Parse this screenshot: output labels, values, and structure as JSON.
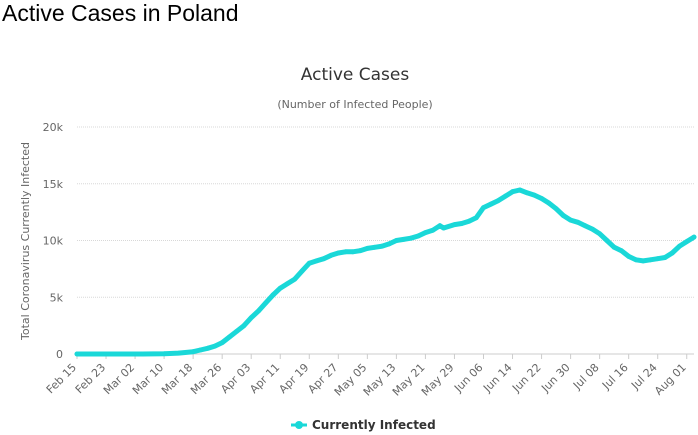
{
  "page": {
    "title": "Active Cases in Poland"
  },
  "chart_data": {
    "type": "line",
    "title": "Active Cases",
    "subtitle": "(Number of Infected People)",
    "xlabel": "",
    "ylabel": "Total Coronavirus Currently Infected",
    "ylim": [
      0,
      20000
    ],
    "yticks": [
      {
        "value": 0,
        "label": "0"
      },
      {
        "value": 5000,
        "label": "5k"
      },
      {
        "value": 10000,
        "label": "10k"
      },
      {
        "value": 15000,
        "label": "15k"
      },
      {
        "value": 20000,
        "label": "20k"
      }
    ],
    "x_start": "2020-02-15",
    "x_end": "2020-08-03",
    "xticks": [
      {
        "date": "2020-02-15",
        "label": "Feb 15"
      },
      {
        "date": "2020-02-23",
        "label": "Feb 23"
      },
      {
        "date": "2020-03-02",
        "label": "Mar 02"
      },
      {
        "date": "2020-03-10",
        "label": "Mar 10"
      },
      {
        "date": "2020-03-18",
        "label": "Mar 18"
      },
      {
        "date": "2020-03-26",
        "label": "Mar 26"
      },
      {
        "date": "2020-04-03",
        "label": "Apr 03"
      },
      {
        "date": "2020-04-11",
        "label": "Apr 11"
      },
      {
        "date": "2020-04-19",
        "label": "Apr 19"
      },
      {
        "date": "2020-04-27",
        "label": "Apr 27"
      },
      {
        "date": "2020-05-05",
        "label": "May 05"
      },
      {
        "date": "2020-05-13",
        "label": "May 13"
      },
      {
        "date": "2020-05-21",
        "label": "May 21"
      },
      {
        "date": "2020-05-29",
        "label": "May 29"
      },
      {
        "date": "2020-06-06",
        "label": "Jun 06"
      },
      {
        "date": "2020-06-14",
        "label": "Jun 14"
      },
      {
        "date": "2020-06-22",
        "label": "Jun 22"
      },
      {
        "date": "2020-06-30",
        "label": "Jun 30"
      },
      {
        "date": "2020-07-08",
        "label": "Jul 08"
      },
      {
        "date": "2020-07-16",
        "label": "Jul 16"
      },
      {
        "date": "2020-07-24",
        "label": "Jul 24"
      },
      {
        "date": "2020-08-01",
        "label": "Aug 01"
      }
    ],
    "grid": true,
    "legend_position": "bottom-center",
    "series": [
      {
        "name": "Currently Infected",
        "color": "#1ad8d8",
        "points": [
          [
            "2020-02-15",
            0
          ],
          [
            "2020-03-04",
            0
          ],
          [
            "2020-03-10",
            20
          ],
          [
            "2020-03-14",
            80
          ],
          [
            "2020-03-18",
            200
          ],
          [
            "2020-03-20",
            350
          ],
          [
            "2020-03-22",
            500
          ],
          [
            "2020-03-24",
            700
          ],
          [
            "2020-03-26",
            1000
          ],
          [
            "2020-03-28",
            1500
          ],
          [
            "2020-03-30",
            2000
          ],
          [
            "2020-04-01",
            2500
          ],
          [
            "2020-04-03",
            3200
          ],
          [
            "2020-04-05",
            3800
          ],
          [
            "2020-04-07",
            4500
          ],
          [
            "2020-04-09",
            5200
          ],
          [
            "2020-04-11",
            5800
          ],
          [
            "2020-04-13",
            6200
          ],
          [
            "2020-04-15",
            6600
          ],
          [
            "2020-04-17",
            7300
          ],
          [
            "2020-04-19",
            8000
          ],
          [
            "2020-04-21",
            8200
          ],
          [
            "2020-04-23",
            8400
          ],
          [
            "2020-04-25",
            8700
          ],
          [
            "2020-04-27",
            8900
          ],
          [
            "2020-04-29",
            9000
          ],
          [
            "2020-05-01",
            9000
          ],
          [
            "2020-05-03",
            9100
          ],
          [
            "2020-05-05",
            9300
          ],
          [
            "2020-05-07",
            9400
          ],
          [
            "2020-05-09",
            9500
          ],
          [
            "2020-05-11",
            9700
          ],
          [
            "2020-05-13",
            10000
          ],
          [
            "2020-05-15",
            10100
          ],
          [
            "2020-05-17",
            10200
          ],
          [
            "2020-05-19",
            10400
          ],
          [
            "2020-05-21",
            10700
          ],
          [
            "2020-05-23",
            10900
          ],
          [
            "2020-05-25",
            11300
          ],
          [
            "2020-05-26",
            11100
          ],
          [
            "2020-05-29",
            11400
          ],
          [
            "2020-05-31",
            11500
          ],
          [
            "2020-06-02",
            11700
          ],
          [
            "2020-06-04",
            12000
          ],
          [
            "2020-06-06",
            12900
          ],
          [
            "2020-06-08",
            13200
          ],
          [
            "2020-06-10",
            13500
          ],
          [
            "2020-06-12",
            13900
          ],
          [
            "2020-06-14",
            14300
          ],
          [
            "2020-06-16",
            14450
          ],
          [
            "2020-06-18",
            14200
          ],
          [
            "2020-06-20",
            14000
          ],
          [
            "2020-06-22",
            13700
          ],
          [
            "2020-06-24",
            13300
          ],
          [
            "2020-06-26",
            12800
          ],
          [
            "2020-06-28",
            12200
          ],
          [
            "2020-06-30",
            11800
          ],
          [
            "2020-07-02",
            11600
          ],
          [
            "2020-07-04",
            11300
          ],
          [
            "2020-07-06",
            11000
          ],
          [
            "2020-07-08",
            10600
          ],
          [
            "2020-07-10",
            10000
          ],
          [
            "2020-07-12",
            9400
          ],
          [
            "2020-07-14",
            9100
          ],
          [
            "2020-07-16",
            8600
          ],
          [
            "2020-07-18",
            8300
          ],
          [
            "2020-07-20",
            8200
          ],
          [
            "2020-07-22",
            8300
          ],
          [
            "2020-07-24",
            8400
          ],
          [
            "2020-07-26",
            8500
          ],
          [
            "2020-07-28",
            8900
          ],
          [
            "2020-07-30",
            9500
          ],
          [
            "2020-08-01",
            9900
          ],
          [
            "2020-08-03",
            10300
          ]
        ]
      }
    ]
  }
}
